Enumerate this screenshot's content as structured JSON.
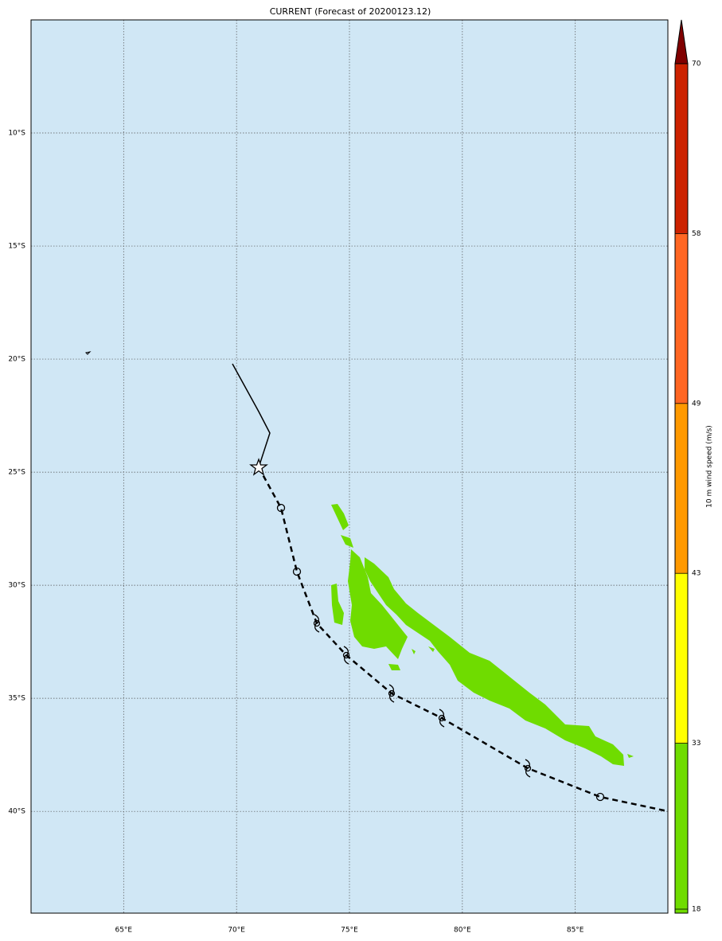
{
  "map": {
    "title": "CURRENT (Forecast of 20200123.12)",
    "lonlim": [
      60.9,
      89.1
    ],
    "latlim": [
      -44.5,
      -5
    ],
    "lon_ticks": [
      {
        "value": 65,
        "label": "65°E"
      },
      {
        "value": 70,
        "label": "70°E"
      },
      {
        "value": 75,
        "label": "75°E"
      },
      {
        "value": 80,
        "label": "80°E"
      },
      {
        "value": 85,
        "label": "85°E"
      }
    ],
    "lat_ticks": [
      {
        "value": -10,
        "label": "10°S"
      },
      {
        "value": -15,
        "label": "15°S"
      },
      {
        "value": -20,
        "label": "20°S"
      },
      {
        "value": -25,
        "label": "25°S"
      },
      {
        "value": -30,
        "label": "30°S"
      },
      {
        "value": -35,
        "label": "35°S"
      },
      {
        "value": -40,
        "label": "40°S"
      }
    ],
    "colorbar": {
      "label": "10 m wind speed (m/s)",
      "levels": [
        18,
        33,
        43,
        49,
        58,
        70
      ],
      "colors": [
        "#6fdc00",
        "#ffff00",
        "#ff9900",
        "#ff6622",
        "#cc2200"
      ],
      "extend_color": "#800000"
    }
  }
}
